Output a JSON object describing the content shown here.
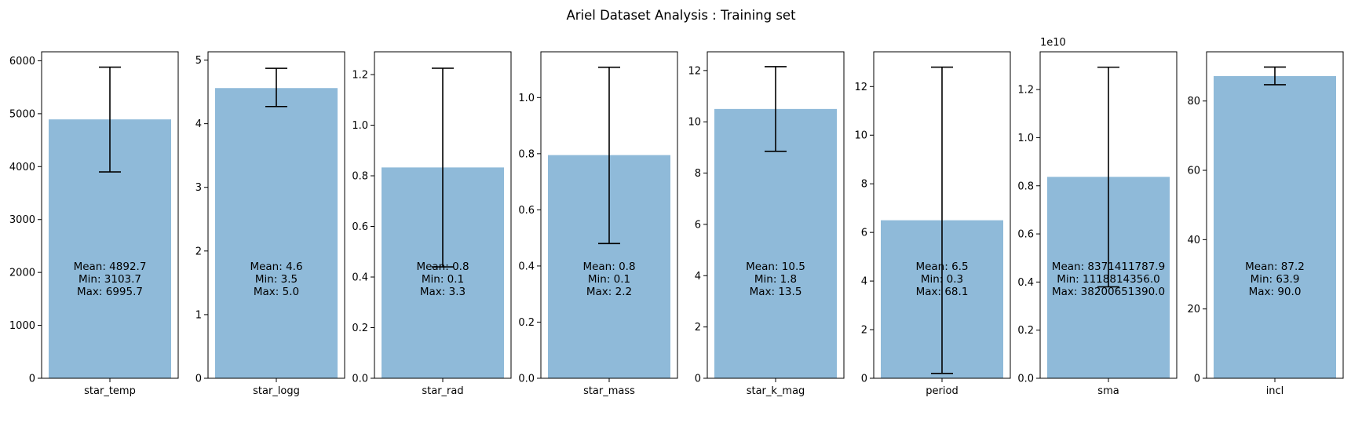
{
  "title": "Ariel Dataset Analysis : Training set",
  "chart_data": [
    {
      "type": "bar",
      "categories": [
        "star_temp"
      ],
      "values": [
        4892.7
      ],
      "error_bar": [
        3900,
        5880
      ],
      "stats": [
        "Mean: 4892.7",
        "Min: 3103.7",
        "Max: 6995.7"
      ],
      "yticks": [
        "0",
        "1000",
        "2000",
        "3000",
        "4000",
        "5000",
        "6000"
      ],
      "ylim": [
        0,
        6170
      ],
      "bar_color": "#8fbad9"
    },
    {
      "type": "bar",
      "categories": [
        "star_logg"
      ],
      "values": [
        4.56
      ],
      "error_bar": [
        4.27,
        4.87
      ],
      "stats": [
        "Mean: 4.6",
        "Min: 3.5",
        "Max: 5.0"
      ],
      "yticks": [
        "0",
        "1",
        "2",
        "3",
        "4",
        "5"
      ],
      "ylim": [
        0,
        5.13
      ],
      "bar_color": "#8fbad9"
    },
    {
      "type": "bar",
      "categories": [
        "star_rad"
      ],
      "values": [
        0.833
      ],
      "error_bar": [
        0.44,
        1.225
      ],
      "stats": [
        "Mean: 0.8",
        "Min: 0.1",
        "Max: 3.3"
      ],
      "yticks": [
        "0.0",
        "0.2",
        "0.4",
        "0.6",
        "0.8",
        "1.0",
        "1.2"
      ],
      "ylim": [
        0,
        1.29
      ],
      "bar_color": "#8fbad9"
    },
    {
      "type": "bar",
      "categories": [
        "star_mass"
      ],
      "values": [
        0.795
      ],
      "error_bar": [
        0.48,
        1.108
      ],
      "stats": [
        "Mean: 0.8",
        "Min: 0.1",
        "Max: 2.2"
      ],
      "yticks": [
        "0.0",
        "0.2",
        "0.4",
        "0.6",
        "0.8",
        "1.0"
      ],
      "ylim": [
        0,
        1.163
      ],
      "bar_color": "#8fbad9"
    },
    {
      "type": "bar",
      "categories": [
        "star_k_mag"
      ],
      "values": [
        10.5
      ],
      "error_bar": [
        8.85,
        12.15
      ],
      "stats": [
        "Mean: 10.5",
        "Min: 1.8",
        "Max: 13.5"
      ],
      "yticks": [
        "0",
        "2",
        "4",
        "6",
        "8",
        "10",
        "12"
      ],
      "ylim": [
        0,
        12.73
      ],
      "bar_color": "#8fbad9"
    },
    {
      "type": "bar",
      "categories": [
        "period"
      ],
      "values": [
        6.5
      ],
      "error_bar": [
        0.2,
        12.8
      ],
      "stats": [
        "Mean: 6.5",
        "Min: 0.3",
        "Max: 68.1"
      ],
      "yticks": [
        "0",
        "2",
        "4",
        "6",
        "8",
        "10",
        "12"
      ],
      "ylim": [
        0,
        13.43
      ],
      "bar_color": "#8fbad9"
    },
    {
      "type": "bar",
      "categories": [
        "sma"
      ],
      "values": [
        0.8371411787
      ],
      "error_bar": [
        0.38,
        1.293
      ],
      "stats": [
        "Mean: 8371411787.9",
        "Min: 1118814356.0",
        "Max: 38200651390.0"
      ],
      "yticks": [
        "0.0",
        "0.2",
        "0.4",
        "0.6",
        "0.8",
        "1.0",
        "1.2"
      ],
      "ylim": [
        0,
        1.357
      ],
      "axis_multiplier": "1e10",
      "bar_color": "#8fbad9"
    },
    {
      "type": "bar",
      "categories": [
        "incl"
      ],
      "values": [
        87.2
      ],
      "error_bar": [
        84.7,
        89.8
      ],
      "stats": [
        "Mean: 87.2",
        "Min: 63.9",
        "Max: 90.0"
      ],
      "yticks": [
        "0",
        "20",
        "40",
        "60",
        "80"
      ],
      "ylim": [
        0,
        94.2
      ],
      "bar_color": "#8fbad9"
    }
  ]
}
